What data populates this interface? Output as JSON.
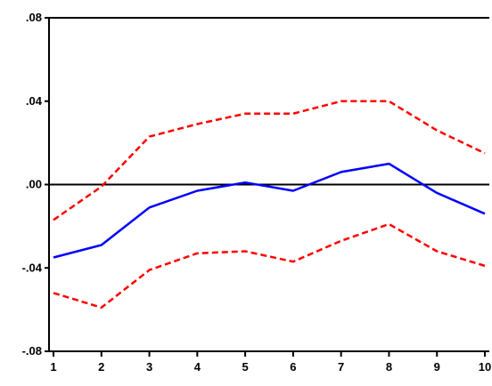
{
  "chart_data": {
    "type": "line",
    "title": "",
    "xlabel": "",
    "ylabel": "",
    "x": [
      1,
      2,
      3,
      4,
      5,
      6,
      7,
      8,
      9,
      10
    ],
    "x_ticks": [
      "1",
      "2",
      "3",
      "4",
      "5",
      "6",
      "7",
      "8",
      "9",
      "10"
    ],
    "ylim": [
      -0.08,
      0.08
    ],
    "y_ticks": [
      {
        "value": 0.08,
        "label": ".08"
      },
      {
        "value": 0.04,
        "label": ".04"
      },
      {
        "value": 0.0,
        "label": ".00"
      },
      {
        "value": -0.04,
        "label": "-.04"
      },
      {
        "value": -0.08,
        "label": "-.08"
      }
    ],
    "grid": false,
    "zero_line": true,
    "series": [
      {
        "role": "upper-band",
        "color": "#ff0000",
        "style": "dashed",
        "values": [
          -0.017,
          -0.001,
          0.023,
          0.029,
          0.034,
          0.034,
          0.04,
          0.04,
          0.026,
          0.015
        ]
      },
      {
        "role": "response",
        "color": "#0000ff",
        "style": "solid",
        "values": [
          -0.035,
          -0.029,
          -0.011,
          -0.003,
          0.001,
          -0.003,
          0.006,
          0.01,
          -0.004,
          -0.014
        ]
      },
      {
        "role": "lower-band",
        "color": "#ff0000",
        "style": "dashed",
        "values": [
          -0.052,
          -0.059,
          -0.041,
          -0.033,
          -0.032,
          -0.037,
          -0.027,
          -0.019,
          -0.032,
          -0.039
        ]
      }
    ]
  }
}
